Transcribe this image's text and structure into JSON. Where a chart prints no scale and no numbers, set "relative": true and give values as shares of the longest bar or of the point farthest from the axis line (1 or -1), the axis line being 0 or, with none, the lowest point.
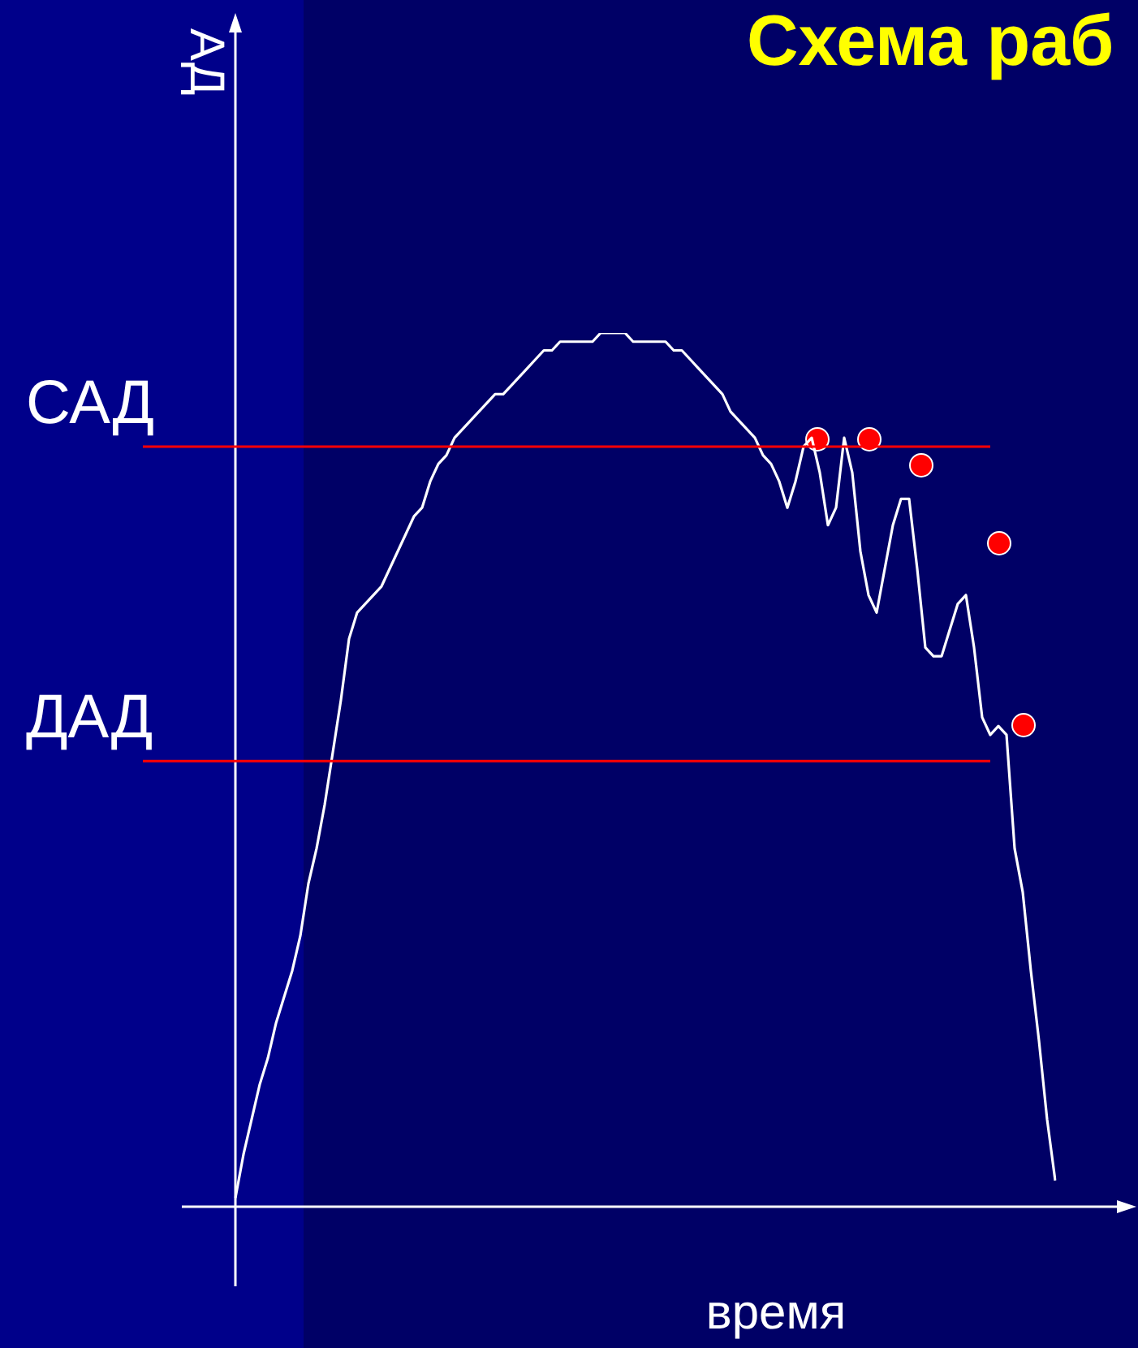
{
  "chart_data": {
    "type": "line",
    "title": "Схема раб",
    "xlabel": "время",
    "ylabel": "АД",
    "relative": true,
    "legend": false,
    "marker": "none",
    "line_style": "solid",
    "categories": [
      null,
      null,
      null,
      null,
      null,
      null,
      null,
      null,
      null,
      null,
      null,
      null,
      null,
      null,
      null,
      null,
      null,
      null,
      null,
      null,
      null,
      null,
      null,
      null,
      null,
      null,
      null,
      null,
      null,
      null,
      null,
      null,
      null,
      null,
      null,
      null,
      null,
      null,
      null,
      null,
      null,
      null,
      null,
      null,
      null,
      null,
      null,
      null,
      null,
      null,
      null,
      null,
      null,
      null,
      null,
      null,
      null,
      null,
      null,
      null,
      null,
      null,
      null,
      null,
      null,
      null,
      null,
      null,
      null,
      null,
      null,
      null,
      null,
      null,
      null,
      null,
      null,
      null,
      null,
      null,
      null,
      null,
      null,
      null,
      null,
      null,
      null,
      null,
      null,
      null,
      null,
      null,
      null,
      null,
      null,
      null,
      null,
      null,
      null,
      null,
      null,
      null
    ],
    "series": [
      {
        "color": "#ffffff",
        "values": [
          0.01,
          0.06,
          0.1,
          0.14,
          0.17,
          0.21,
          0.24,
          0.27,
          0.31,
          0.37,
          0.41,
          0.46,
          0.52,
          0.58,
          0.65,
          0.68,
          0.69,
          0.7,
          0.71,
          0.73,
          0.75,
          0.77,
          0.79,
          0.8,
          0.83,
          0.85,
          0.86,
          0.88,
          0.89,
          0.9,
          0.91,
          0.92,
          0.93,
          0.93,
          0.94,
          0.95,
          0.96,
          0.97,
          0.98,
          0.98,
          0.99,
          0.99,
          0.99,
          0.99,
          0.99,
          1.0,
          1.0,
          1.0,
          1.0,
          0.99,
          0.99,
          0.99,
          0.99,
          0.99,
          0.98,
          0.98,
          0.97,
          0.96,
          0.95,
          0.94,
          0.93,
          0.91,
          0.9,
          0.89,
          0.88,
          0.86,
          0.85,
          0.83,
          0.8,
          0.83,
          0.87,
          0.88,
          0.84,
          0.78,
          0.8,
          0.88,
          0.84,
          0.75,
          0.7,
          0.68,
          0.73,
          0.78,
          0.81,
          0.81,
          0.73,
          0.64,
          0.63,
          0.63,
          0.66,
          0.69,
          0.7,
          0.64,
          0.56,
          0.54,
          0.55,
          0.54,
          0.41,
          0.36,
          0.27,
          0.19,
          0.1,
          0.03
        ]
      }
    ],
    "ref_lines": [
      {
        "axis": "y",
        "value": 0.87,
        "label": "САД",
        "color": "#ff0000"
      },
      {
        "axis": "y",
        "value": 0.51,
        "label": "ДАД",
        "color": "#ff0000"
      }
    ]
  }
}
